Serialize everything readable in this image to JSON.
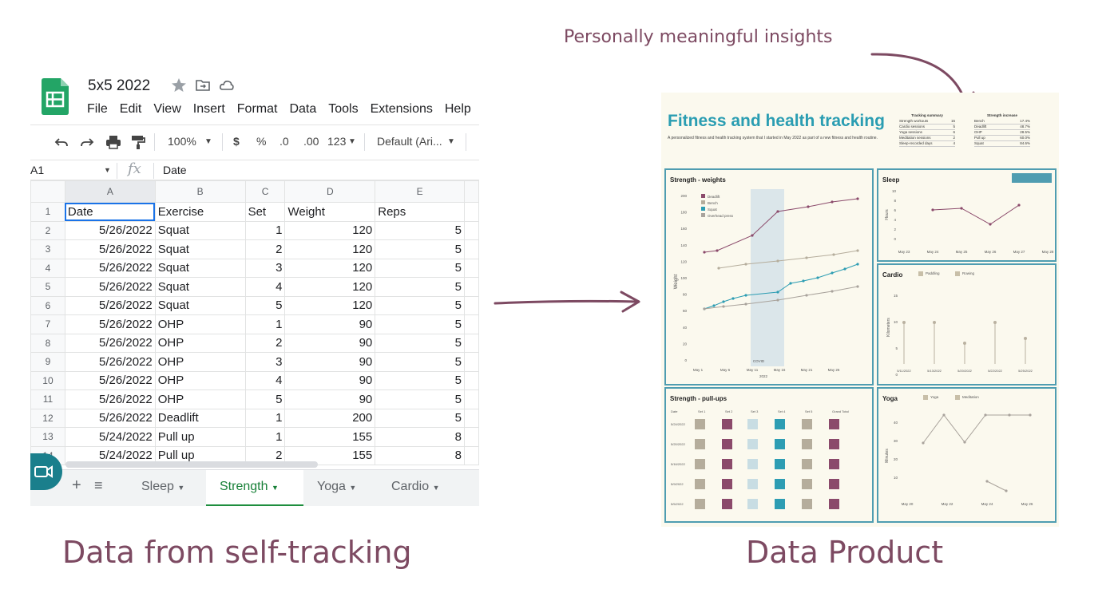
{
  "left_caption": "Data from self-tracking",
  "right_caption": "Data Product",
  "insights_caption": "Personally meaningful insights",
  "spreadsheet": {
    "title": "5x5 2022",
    "menu": [
      "File",
      "Edit",
      "View",
      "Insert",
      "Format",
      "Data",
      "Tools",
      "Extensions",
      "Help"
    ],
    "toolbar": {
      "zoom": "100%",
      "currency": "$",
      "percent": "%",
      "dec_less": ".0",
      "dec_more": ".00",
      "format": "123",
      "font": "Default (Ari..."
    },
    "name_box": "A1",
    "formula_value": "Date",
    "columns": [
      "A",
      "B",
      "C",
      "D",
      "E"
    ],
    "headers": [
      "Date",
      "Exercise",
      "Set",
      "Weight",
      "Reps"
    ],
    "rows": [
      [
        "5/26/2022",
        "Squat",
        "1",
        "120",
        "5"
      ],
      [
        "5/26/2022",
        "Squat",
        "2",
        "120",
        "5"
      ],
      [
        "5/26/2022",
        "Squat",
        "3",
        "120",
        "5"
      ],
      [
        "5/26/2022",
        "Squat",
        "4",
        "120",
        "5"
      ],
      [
        "5/26/2022",
        "Squat",
        "5",
        "120",
        "5"
      ],
      [
        "5/26/2022",
        "OHP",
        "1",
        "90",
        "5"
      ],
      [
        "5/26/2022",
        "OHP",
        "2",
        "90",
        "5"
      ],
      [
        "5/26/2022",
        "OHP",
        "3",
        "90",
        "5"
      ],
      [
        "5/26/2022",
        "OHP",
        "4",
        "90",
        "5"
      ],
      [
        "5/26/2022",
        "OHP",
        "5",
        "90",
        "5"
      ],
      [
        "5/26/2022",
        "Deadlift",
        "1",
        "200",
        "5"
      ],
      [
        "5/24/2022",
        "Pull up",
        "1",
        "155",
        "8"
      ],
      [
        "5/24/2022",
        "Pull up",
        "2",
        "155",
        "8"
      ]
    ],
    "tabs": [
      "Sleep",
      "Strength",
      "Yoga",
      "Cardio"
    ],
    "active_tab": "Strength"
  },
  "dashboard": {
    "title": "Fitness and health tracking",
    "subtitle": "A personalized fitness and health tracking system that I started in May 2022 as part of a new fitness and health routine.",
    "tracking_summary": {
      "title": "Tracking summary",
      "rows": [
        [
          "Strength workouts",
          "15"
        ],
        [
          "Cardio sessions",
          "5"
        ],
        [
          "Yoga sessions",
          "6"
        ],
        [
          "Meditation sessions",
          "2"
        ],
        [
          "Sleep-recorded days",
          "4"
        ]
      ]
    },
    "strength_increase": {
      "title": "Strength increase",
      "rows": [
        [
          "Bench",
          "17.4%"
        ],
        [
          "Deadlift",
          "48.7%"
        ],
        [
          "OHP",
          "28.5%"
        ],
        [
          "Pull up",
          "60.0%"
        ],
        [
          "Squat",
          "84.6%"
        ]
      ]
    },
    "panels": {
      "weights": {
        "title": "Strength - weights",
        "ylabel": "Weight",
        "xlabel": "2022",
        "annotation": "COVID",
        "yticks": [
          "200",
          "180",
          "160",
          "140",
          "120",
          "100",
          "80",
          "60",
          "40",
          "20",
          "0"
        ],
        "xticks": [
          "May 1",
          "May 6",
          "May 11",
          "May 16",
          "May 21",
          "May 26"
        ],
        "legend": [
          "Deadlift",
          "Bench",
          "Squat",
          "Overhead press"
        ]
      },
      "sleep": {
        "title": "Sleep",
        "ylabel": "Hours",
        "yticks": [
          "10",
          "8",
          "6",
          "4",
          "2",
          "0"
        ],
        "xticks": [
          "May 23",
          "May 24",
          "May 25",
          "May 26",
          "May 27",
          "May 28"
        ]
      },
      "cardio": {
        "title": "Cardio",
        "ylabel": "Kilometers",
        "legend": [
          "Paddling",
          "Rowing"
        ],
        "yticks": [
          "15",
          "10",
          "5",
          "0"
        ],
        "xticks": [
          "5/11/2022",
          "5/13/2022",
          "5/20/2022",
          "5/22/2022",
          "5/25/2022"
        ]
      },
      "pullups": {
        "title": "Strength - pull-ups",
        "columns": [
          "Date",
          "Set 1",
          "Set 2",
          "Set 3",
          "Set 4",
          "Set 5",
          "Grand Total"
        ],
        "dates": [
          "5/24/2022",
          "5/20/2022",
          "5/16/2022",
          "5/9/2022",
          "5/5/2022"
        ]
      },
      "yoga": {
        "title": "Yoga",
        "ylabel": "Minutes",
        "legend": [
          "Yoga",
          "Meditation"
        ],
        "yticks": [
          "40",
          "30",
          "20",
          "10"
        ],
        "xticks": [
          "May 20",
          "May 22",
          "May 24",
          "May 26"
        ]
      }
    }
  },
  "colors": {
    "accent": "#7d4a62",
    "teal": "#2a9db2",
    "deadlift": "#8b4a6b",
    "bench": "#b5ad9c",
    "squat": "#2d9db3",
    "ohp": "#a9a39c"
  }
}
